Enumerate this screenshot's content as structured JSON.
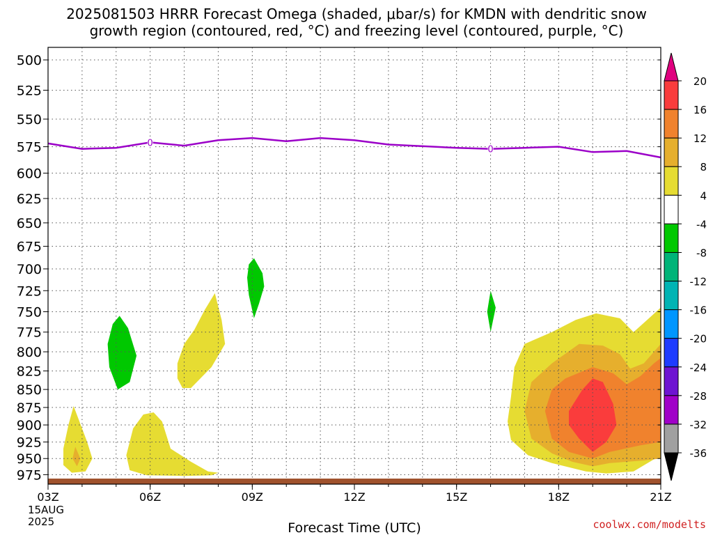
{
  "title": {
    "line1": "2025081503 HRRR Forecast Omega (shaded, μbar/s) for KMDN with dendritic snow",
    "line2": "growth region (contoured, red, °C) and freezing level (contoured, purple, °C)"
  },
  "credit": "coolwx.com/modelts",
  "colors": {
    "grid": "#555555",
    "freezing_line": "#9b00c8",
    "terrain": "#a0522d",
    "green": "#00c800",
    "yellow": "#e6dc32",
    "gold": "#e6af2d",
    "orange": "#f0822d",
    "red": "#fa3c3c"
  },
  "chart_data": {
    "type": "heatmap",
    "xlabel": "Forecast Time (UTC)",
    "x_ticks": [
      "03Z",
      "06Z",
      "09Z",
      "12Z",
      "15Z",
      "18Z",
      "21Z"
    ],
    "x_date": [
      "15AUG",
      "2025"
    ],
    "xlim_hours": [
      3,
      21
    ],
    "y_ticks": [
      500,
      525,
      550,
      575,
      600,
      625,
      650,
      675,
      700,
      725,
      750,
      775,
      800,
      825,
      850,
      875,
      900,
      925,
      950,
      975
    ],
    "ylim_hPa": [
      490,
      990
    ],
    "y_scale": "log",
    "grid": true,
    "colorbar": {
      "levels": [
        {
          "label": "",
          "color": "#e0007f"
        },
        {
          "label": "20",
          "color": "#fa3c3c"
        },
        {
          "label": "16",
          "color": "#f0822d"
        },
        {
          "label": "12",
          "color": "#e6af2d"
        },
        {
          "label": "8",
          "color": "#e6dc32"
        },
        {
          "label": "4",
          "color": "#ffffff"
        },
        {
          "label": "-4",
          "color": "#00c800"
        },
        {
          "label": "-8",
          "color": "#00b478"
        },
        {
          "label": "-12",
          "color": "#00b4b4"
        },
        {
          "label": "-16",
          "color": "#0096ff"
        },
        {
          "label": "-20",
          "color": "#1e3cff"
        },
        {
          "label": "-24",
          "color": "#6e14d2"
        },
        {
          "label": "-28",
          "color": "#a000c8"
        },
        {
          "label": "-32",
          "color": "#a0a0a0"
        },
        {
          "label": "-36",
          "color": "#000000"
        }
      ]
    },
    "freezing_level": {
      "label": "0",
      "label_hours": [
        6,
        16
      ],
      "points": [
        [
          3,
          572
        ],
        [
          4,
          577
        ],
        [
          5,
          576
        ],
        [
          6,
          571
        ],
        [
          7,
          574
        ],
        [
          8,
          569
        ],
        [
          9,
          567
        ],
        [
          10,
          570
        ],
        [
          11,
          567
        ],
        [
          12,
          569
        ],
        [
          13,
          573
        ],
        [
          15,
          576
        ],
        [
          16,
          577
        ],
        [
          17,
          576
        ],
        [
          18,
          575
        ],
        [
          19,
          580
        ],
        [
          20,
          579
        ],
        [
          21,
          585
        ]
      ]
    },
    "omega_regions": [
      {
        "value": 6,
        "color_key": "yellow",
        "points": [
          [
            3.45,
            935
          ],
          [
            3.6,
            900
          ],
          [
            3.75,
            873
          ],
          [
            4.15,
            925
          ],
          [
            4.3,
            950
          ],
          [
            4.1,
            970
          ],
          [
            3.7,
            972
          ],
          [
            3.45,
            960
          ]
        ]
      },
      {
        "value": 10,
        "color_key": "gold",
        "points": [
          [
            3.8,
            932
          ],
          [
            3.95,
            950
          ],
          [
            3.85,
            962
          ],
          [
            3.72,
            950
          ]
        ]
      },
      {
        "value": -6,
        "color_key": "green",
        "points": [
          [
            5.1,
            755
          ],
          [
            5.35,
            770
          ],
          [
            5.6,
            805
          ],
          [
            5.4,
            840
          ],
          [
            5.05,
            850
          ],
          [
            4.8,
            820
          ],
          [
            4.75,
            790
          ],
          [
            4.9,
            765
          ]
        ]
      },
      {
        "value": 6,
        "color_key": "yellow",
        "points": [
          [
            5.3,
            945
          ],
          [
            5.5,
            905
          ],
          [
            5.8,
            885
          ],
          [
            6.1,
            882
          ],
          [
            6.35,
            895
          ],
          [
            6.6,
            935
          ],
          [
            7.2,
            955
          ],
          [
            7.7,
            970
          ],
          [
            8,
            972
          ],
          [
            7.8,
            976
          ],
          [
            7,
            977
          ],
          [
            5.9,
            976
          ],
          [
            5.4,
            968
          ]
        ]
      },
      {
        "value": 6,
        "color_key": "yellow",
        "points": [
          [
            6.8,
            815
          ],
          [
            7,
            790
          ],
          [
            7.3,
            772
          ],
          [
            7.6,
            748
          ],
          [
            7.9,
            728
          ],
          [
            8.1,
            760
          ],
          [
            8.2,
            790
          ],
          [
            7.8,
            820
          ],
          [
            7.2,
            848
          ],
          [
            6.95,
            848
          ],
          [
            6.8,
            835
          ]
        ]
      },
      {
        "value": -6,
        "color_key": "green",
        "points": [
          [
            8.9,
            695
          ],
          [
            9.05,
            688
          ],
          [
            9.3,
            705
          ],
          [
            9.35,
            720
          ],
          [
            9.2,
            740
          ],
          [
            9.05,
            758
          ],
          [
            8.9,
            730
          ],
          [
            8.85,
            710
          ]
        ]
      },
      {
        "value": -6,
        "color_key": "green",
        "points": [
          [
            15.9,
            750
          ],
          [
            16,
            725
          ],
          [
            16.15,
            745
          ],
          [
            16,
            775
          ]
        ]
      },
      {
        "value": 6,
        "color_key": "yellow",
        "points": [
          [
            16.5,
            895
          ],
          [
            16.6,
            860
          ],
          [
            16.7,
            820
          ],
          [
            17,
            790
          ],
          [
            17.8,
            775
          ],
          [
            18.5,
            760
          ],
          [
            19.1,
            752
          ],
          [
            19.8,
            758
          ],
          [
            20.2,
            775
          ],
          [
            20.6,
            760
          ],
          [
            21,
            745
          ],
          [
            21,
            945
          ],
          [
            20.2,
            970
          ],
          [
            19.4,
            973
          ],
          [
            18.8,
            970
          ],
          [
            17.8,
            957
          ],
          [
            17.1,
            945
          ],
          [
            16.6,
            922
          ]
        ]
      },
      {
        "value": 10,
        "color_key": "gold",
        "points": [
          [
            17,
            880
          ],
          [
            17.2,
            840
          ],
          [
            17.8,
            815
          ],
          [
            18.6,
            790
          ],
          [
            19.3,
            792
          ],
          [
            19.8,
            803
          ],
          [
            20.1,
            822
          ],
          [
            20.5,
            815
          ],
          [
            21,
            790
          ],
          [
            21,
            950
          ],
          [
            20.5,
            953
          ],
          [
            19.5,
            957
          ],
          [
            19,
            962
          ],
          [
            18.4,
            955
          ],
          [
            17.8,
            942
          ],
          [
            17.2,
            920
          ]
        ]
      },
      {
        "value": 14,
        "color_key": "orange",
        "points": [
          [
            17.6,
            880
          ],
          [
            17.8,
            850
          ],
          [
            18.2,
            835
          ],
          [
            19,
            820
          ],
          [
            19.6,
            828
          ],
          [
            20,
            843
          ],
          [
            20.4,
            832
          ],
          [
            20.8,
            815
          ],
          [
            21,
            808
          ],
          [
            21,
            925
          ],
          [
            20.4,
            930
          ],
          [
            19.5,
            940
          ],
          [
            19,
            950
          ],
          [
            18.3,
            940
          ],
          [
            17.8,
            920
          ]
        ]
      },
      {
        "value": 18,
        "color_key": "red",
        "points": [
          [
            18.3,
            880
          ],
          [
            18.7,
            850
          ],
          [
            19,
            835
          ],
          [
            19.3,
            840
          ],
          [
            19.6,
            870
          ],
          [
            19.7,
            900
          ],
          [
            19.4,
            925
          ],
          [
            19,
            940
          ],
          [
            18.6,
            920
          ],
          [
            18.3,
            900
          ]
        ]
      }
    ]
  }
}
